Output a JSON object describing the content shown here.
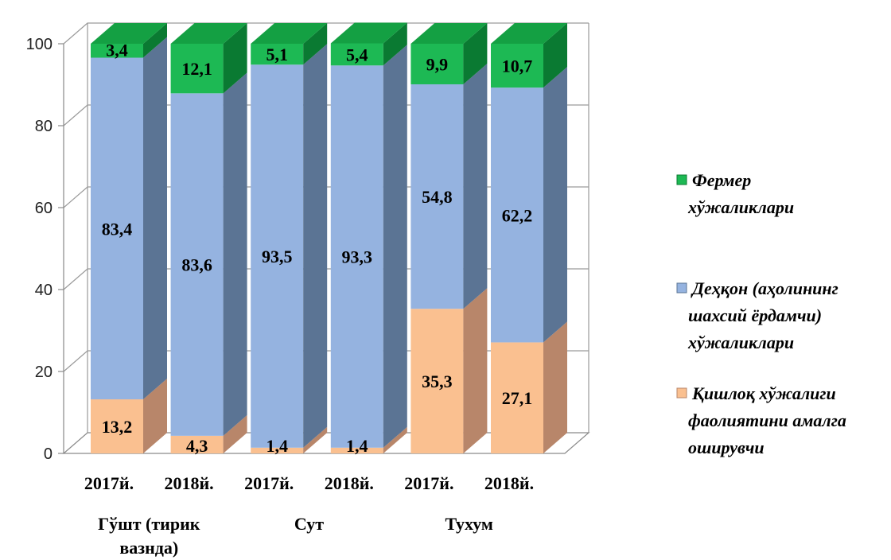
{
  "chart_data": {
    "type": "bar",
    "stacked": true,
    "three_d": true,
    "categories": [
      "2017й.",
      "2018й.",
      "2017й.",
      "2018й.",
      "2017й.",
      "2018й."
    ],
    "groups": [
      {
        "label_lines": [
          "Гўшт (тирик",
          "вазнда)"
        ],
        "span": [
          0,
          1
        ]
      },
      {
        "label_lines": [
          "Сут"
        ],
        "span": [
          2,
          3
        ]
      },
      {
        "label_lines": [
          "Тухум"
        ],
        "span": [
          4,
          5
        ]
      }
    ],
    "series": [
      {
        "name": "Қишлоқ хўжалиги фаолиятини амалга оширувчи",
        "name_lines": [
          "Қишлоқ хўжалиги",
          "фаолиятини амалга",
          "оширувчи"
        ],
        "values": [
          13.2,
          4.3,
          1.4,
          1.4,
          35.3,
          27.1
        ],
        "labels": [
          "13,2",
          "4,3",
          "1,4",
          "1,4",
          "35,3",
          "27,1"
        ],
        "color": "#FAC090",
        "side_color": "#B8866A",
        "top_color": "#E7B080"
      },
      {
        "name": "Деҳқон (аҳолининг шахсий ёрдамчи) хўжаликлари",
        "name_lines": [
          "Деҳқон (аҳолининг",
          "шахсий ёрдамчи)",
          "хўжаликлари"
        ],
        "values": [
          83.4,
          83.6,
          93.5,
          93.3,
          54.8,
          62.2
        ],
        "labels": [
          "83,4",
          "83,6",
          "93,5",
          "93,3",
          "54,8",
          "62,2"
        ],
        "color": "#95B3E0",
        "side_color": "#5B7494",
        "top_color": "#7E9CCB"
      },
      {
        "name": "Фермер хўжаликлари",
        "name_lines": [
          "Фермер",
          "хўжаликлари"
        ],
        "values": [
          3.4,
          12.1,
          5.1,
          5.4,
          9.9,
          10.7
        ],
        "labels": [
          "3,4",
          "12,1",
          "5,1",
          "5,4",
          "9,9",
          "10,7"
        ],
        "color": "#1DB954",
        "side_color": "#0A7A32",
        "top_color": "#14A043"
      }
    ],
    "y_ticks": [
      "0",
      "20",
      "40",
      "60",
      "80",
      "100"
    ],
    "ylim": [
      0,
      100
    ],
    "grid": true,
    "legend": "right"
  }
}
